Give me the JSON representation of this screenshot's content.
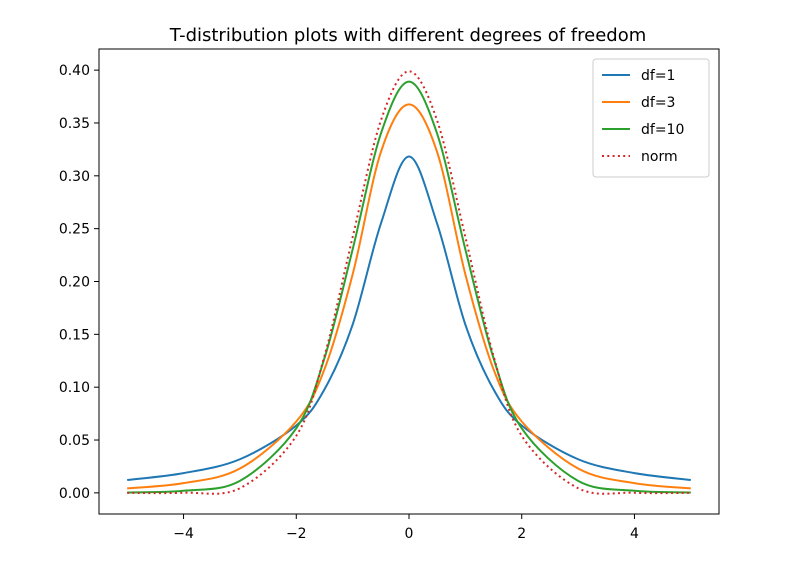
{
  "chart_data": {
    "type": "line",
    "title": "T-distribution plots with different degrees of freedom",
    "xlabel": "",
    "ylabel": "",
    "xlim": [
      -5.5,
      5.5
    ],
    "ylim": [
      -0.02,
      0.42
    ],
    "x_ticks": [
      -4,
      -2,
      0,
      2,
      4
    ],
    "x_tick_labels": [
      "−4",
      "−2",
      "0",
      "2",
      "4"
    ],
    "y_ticks": [
      0.0,
      0.05,
      0.1,
      0.15,
      0.2,
      0.25,
      0.3,
      0.35,
      0.4
    ],
    "y_tick_labels": [
      "0.00",
      "0.05",
      "0.10",
      "0.15",
      "0.20",
      "0.25",
      "0.30",
      "0.35",
      "0.40"
    ],
    "grid": false,
    "legend_position": "top-right",
    "series": [
      {
        "name": "df=1",
        "color": "#1f77b4",
        "style": "solid",
        "x": [
          -5,
          -4,
          -3,
          -2,
          -1.5,
          -1,
          -0.5,
          0,
          0.5,
          1,
          1.5,
          2,
          3,
          4,
          5
        ],
        "y": [
          0.0122,
          0.0187,
          0.0318,
          0.0637,
          0.0979,
          0.1592,
          0.2546,
          0.3183,
          0.2546,
          0.1592,
          0.0979,
          0.0637,
          0.0318,
          0.0187,
          0.0122
        ]
      },
      {
        "name": "df=3",
        "color": "#ff7f0e",
        "style": "solid",
        "x": [
          -5,
          -4,
          -3,
          -2,
          -1.5,
          -1,
          -0.5,
          0,
          0.5,
          1,
          1.5,
          2,
          3,
          4,
          5
        ],
        "y": [
          0.0042,
          0.0092,
          0.023,
          0.0675,
          0.1169,
          0.2067,
          0.3223,
          0.3676,
          0.3223,
          0.2067,
          0.1169,
          0.0675,
          0.023,
          0.0092,
          0.0042
        ]
      },
      {
        "name": "df=10",
        "color": "#2ca02c",
        "style": "solid",
        "x": [
          -5,
          -4,
          -3,
          -2,
          -1.5,
          -1,
          -0.5,
          0,
          0.5,
          1,
          1.5,
          2,
          3,
          4,
          5
        ],
        "y": [
          0.0004,
          0.002,
          0.0114,
          0.0611,
          0.1274,
          0.2304,
          0.3397,
          0.3891,
          0.3397,
          0.2304,
          0.1274,
          0.0611,
          0.0114,
          0.002,
          0.0004
        ]
      },
      {
        "name": "norm",
        "color": "#d62728",
        "style": "dotted",
        "x": [
          -5,
          -4,
          -3,
          -2,
          -1.5,
          -1,
          -0.5,
          0,
          0.5,
          1,
          1.5,
          2,
          3,
          4,
          5
        ],
        "y": [
          0.0,
          0.0001,
          0.0044,
          0.054,
          0.1295,
          0.242,
          0.3521,
          0.3989,
          0.3521,
          0.242,
          0.1295,
          0.054,
          0.0044,
          0.0001,
          0.0
        ]
      }
    ]
  }
}
